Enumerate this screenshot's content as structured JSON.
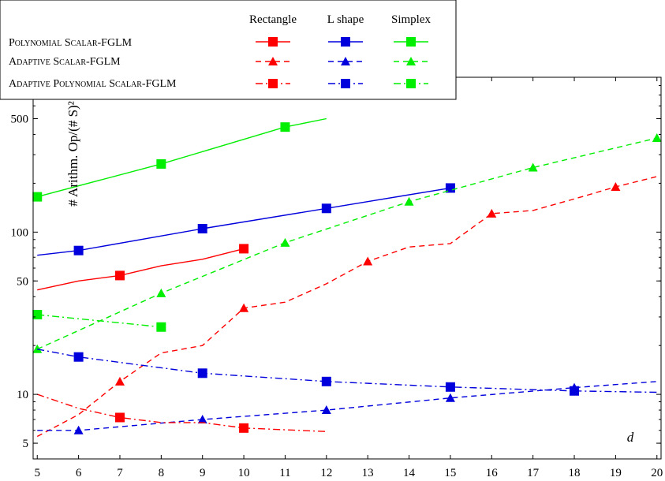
{
  "chart_data": {
    "type": "line",
    "xlabel": "d",
    "ylabel": "# Arithm. Op/(# S)²",
    "yscale": "log",
    "xlim": [
      4.9,
      20.1
    ],
    "ylim": [
      4,
      900
    ],
    "x_ticks": [
      5,
      6,
      7,
      8,
      9,
      10,
      11,
      12,
      13,
      14,
      15,
      16,
      17,
      18,
      19,
      20
    ],
    "y_ticks": [
      5,
      10,
      50,
      100,
      500
    ],
    "grid": false,
    "legend": {
      "placement": "top-left",
      "columns": [
        "Rectangle",
        "L shape",
        "Simplex"
      ],
      "rows": [
        "Polynomial Scalar-FGLM",
        "Adaptive Scalar-FGLM",
        "Adaptive Polynomial Scalar-FGLM"
      ]
    },
    "colors": {
      "Rectangle": "#ff0000",
      "L shape": "#0000dd",
      "Simplex": "#00ee00"
    },
    "series": [
      {
        "algorithm": "Polynomial Scalar-FGLM",
        "shape": "Rectangle",
        "line": "solid",
        "marker": "square",
        "x": [
          5,
          6,
          7,
          8,
          9,
          10
        ],
        "y": [
          44,
          50,
          54,
          62,
          68,
          79
        ],
        "marked": [
          7,
          10
        ]
      },
      {
        "algorithm": "Polynomial Scalar-FGLM",
        "shape": "L shape",
        "line": "solid",
        "marker": "square",
        "x": [
          5,
          6,
          9,
          12,
          15
        ],
        "y": [
          72,
          77,
          105,
          140,
          187
        ],
        "marked": [
          6,
          9,
          12,
          15
        ]
      },
      {
        "algorithm": "Polynomial Scalar-FGLM",
        "shape": "Simplex",
        "line": "solid",
        "marker": "square",
        "x": [
          5,
          8,
          11,
          12
        ],
        "y": [
          165,
          263,
          444,
          500
        ],
        "marked": [
          5,
          8,
          11
        ]
      },
      {
        "algorithm": "Adaptive Scalar-FGLM",
        "shape": "Rectangle",
        "line": "dashed",
        "marker": "triangle",
        "x": [
          5,
          6,
          7,
          8,
          9,
          10,
          11,
          12,
          13,
          14,
          15,
          16,
          17,
          18,
          19,
          20
        ],
        "y": [
          5.5,
          7.5,
          12,
          18,
          20,
          34,
          37,
          48,
          66,
          81,
          85,
          130,
          136,
          160,
          190,
          220
        ],
        "marked": [
          7,
          10,
          13,
          16,
          19
        ]
      },
      {
        "algorithm": "Adaptive Scalar-FGLM",
        "shape": "L shape",
        "line": "dashed",
        "marker": "triangle",
        "x": [
          5,
          6,
          9,
          12,
          15,
          18,
          20
        ],
        "y": [
          6,
          6,
          7,
          8,
          9.5,
          11,
          12
        ],
        "marked": [
          6,
          9,
          12,
          15,
          18
        ]
      },
      {
        "algorithm": "Adaptive Scalar-FGLM",
        "shape": "Simplex",
        "line": "dashed",
        "marker": "triangle",
        "x": [
          5,
          8,
          11,
          14,
          17,
          20
        ],
        "y": [
          19,
          42,
          86,
          154,
          250,
          380
        ],
        "marked": [
          5,
          8,
          11,
          14,
          17,
          20
        ]
      },
      {
        "algorithm": "Adaptive Polynomial Scalar-FGLM",
        "shape": "Rectangle",
        "line": "dashdot",
        "marker": "square",
        "x": [
          5,
          6,
          7,
          8,
          9,
          10,
          12
        ],
        "y": [
          10,
          8.2,
          7.2,
          6.7,
          6.7,
          6.2,
          5.9
        ],
        "marked": [
          7,
          10
        ]
      },
      {
        "algorithm": "Adaptive Polynomial Scalar-FGLM",
        "shape": "L shape",
        "line": "dashdot",
        "marker": "square",
        "x": [
          5,
          6,
          9,
          12,
          15,
          18,
          20
        ],
        "y": [
          19,
          17,
          13.5,
          12,
          11.1,
          10.5,
          10.3
        ],
        "marked": [
          6,
          9,
          12,
          15,
          18
        ]
      },
      {
        "algorithm": "Adaptive Polynomial Scalar-FGLM",
        "shape": "Simplex",
        "line": "dashdot",
        "marker": "square",
        "x": [
          5,
          8
        ],
        "y": [
          31,
          26
        ],
        "marked": [
          5,
          8
        ]
      }
    ]
  }
}
